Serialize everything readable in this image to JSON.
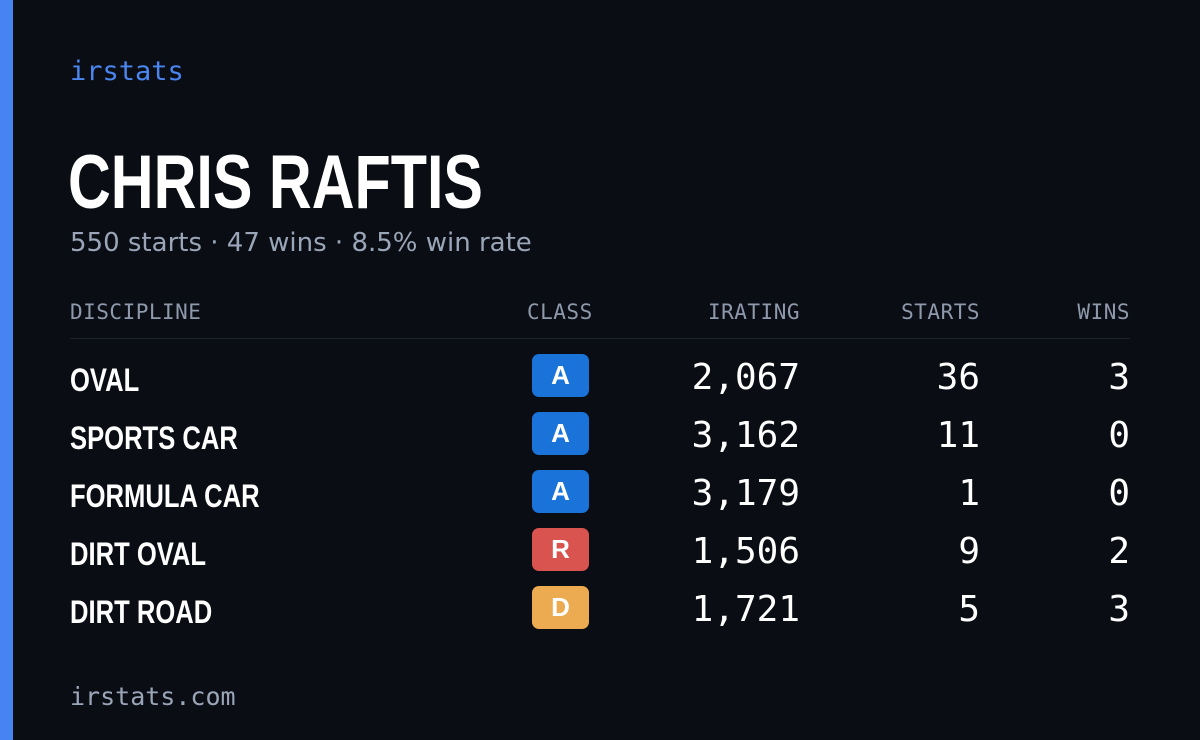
{
  "brand": "irstats",
  "driver": {
    "name": "CHRIS RAFTIS",
    "summary": "550 starts · 47 wins · 8.5% win rate"
  },
  "table": {
    "headers": {
      "discipline": "DISCIPLINE",
      "class": "CLASS",
      "irating": "IRATING",
      "starts": "STARTS",
      "wins": "WINS"
    },
    "rows": [
      {
        "discipline": "OVAL",
        "class": "A",
        "class_color": "#1a73d9",
        "irating": "2,067",
        "starts": "36",
        "wins": "3"
      },
      {
        "discipline": "SPORTS CAR",
        "class": "A",
        "class_color": "#1a73d9",
        "irating": "3,162",
        "starts": "11",
        "wins": "0"
      },
      {
        "discipline": "FORMULA CAR",
        "class": "A",
        "class_color": "#1a73d9",
        "irating": "3,179",
        "starts": "1",
        "wins": "0"
      },
      {
        "discipline": "DIRT OVAL",
        "class": "R",
        "class_color": "#d9534f",
        "irating": "1,506",
        "starts": "9",
        "wins": "2"
      },
      {
        "discipline": "DIRT ROAD",
        "class": "D",
        "class_color": "#ecab50",
        "irating": "1,721",
        "starts": "5",
        "wins": "3"
      }
    ]
  },
  "footer": {
    "url": "irstats.com"
  },
  "colors": {
    "background": "#0a0d14",
    "accent": "#4684f3",
    "muted_text": "#9aa6b8"
  }
}
